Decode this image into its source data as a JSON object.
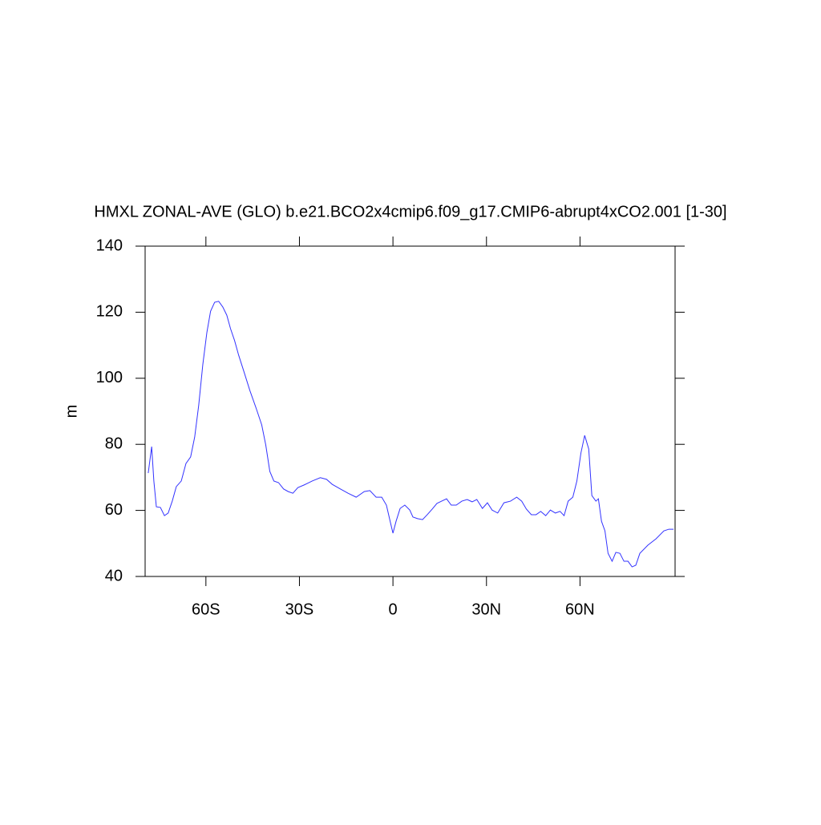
{
  "chart_data": {
    "type": "line",
    "title": "HMXL ZONAL-AVE (GLO) b.e21.BCO2x4cmip6.f09_g17.CMIP6-abrupt4xCO2.001 [1-30]",
    "y_label": "m",
    "x": [
      -78.5,
      -77.4,
      -76.7,
      -75.9,
      -74.6,
      -73.3,
      -72.1,
      -70.8,
      -69.5,
      -67.9,
      -66.4,
      -64.9,
      -63.6,
      -62.3,
      -61.0,
      -59.7,
      -58.5,
      -57.2,
      -55.9,
      -54.6,
      -53.3,
      -52.1,
      -50.8,
      -49.5,
      -47.7,
      -45.9,
      -43.8,
      -42.1,
      -40.8,
      -39.5,
      -38.2,
      -36.7,
      -35.1,
      -33.6,
      -32.1,
      -30.5,
      -28.5,
      -25.9,
      -23.3,
      -21.3,
      -19.5,
      -16.9,
      -14.4,
      -11.8,
      -9.2,
      -7.4,
      -5.4,
      -3.6,
      -2.1,
      -0.8,
      0,
      1.0,
      2.3,
      3.8,
      5.4,
      6.4,
      7.9,
      9.5,
      11.0,
      12.6,
      14.1,
      15.6,
      17.2,
      18.7,
      20.3,
      22.1,
      23.8,
      25.4,
      26.9,
      28.7,
      30.3,
      31.8,
      33.6,
      35.6,
      37.7,
      39.7,
      41.3,
      42.8,
      44.4,
      45.9,
      47.4,
      49.0,
      50.5,
      52.1,
      53.6,
      54.9,
      56.2,
      57.7,
      59.0,
      60.3,
      61.5,
      62.8,
      63.8,
      65.1,
      65.9,
      66.9,
      68.0,
      69.0,
      70.3,
      71.5,
      72.8,
      74.1,
      75.4,
      76.7,
      77.9,
      79.2,
      81.8,
      84.4,
      86.9,
      88.5,
      90.0
    ],
    "series": [
      {
        "name": "HMXL",
        "color": "#3333ff",
        "values": [
          71.3,
          79.3,
          68.9,
          61.1,
          60.9,
          58.4,
          59.2,
          62.8,
          67.2,
          68.9,
          74.2,
          76.2,
          82.2,
          91.9,
          104.1,
          113.8,
          120.3,
          123.0,
          123.3,
          121.6,
          119.1,
          115.0,
          111.4,
          107.0,
          101.7,
          96.3,
          90.7,
          85.9,
          79.8,
          71.8,
          68.9,
          68.4,
          66.5,
          65.7,
          65.2,
          66.9,
          67.7,
          68.9,
          69.9,
          69.4,
          67.9,
          66.5,
          65.2,
          64.0,
          65.7,
          66.0,
          64.0,
          64.0,
          61.6,
          56.3,
          53.1,
          56.7,
          60.6,
          61.6,
          60.1,
          58.0,
          57.5,
          57.2,
          58.7,
          60.4,
          62.1,
          62.8,
          63.5,
          61.6,
          61.6,
          62.8,
          63.3,
          62.6,
          63.3,
          60.6,
          62.3,
          60.1,
          59.2,
          62.3,
          62.8,
          64.0,
          62.8,
          60.4,
          58.7,
          58.7,
          59.7,
          58.4,
          60.1,
          59.2,
          59.7,
          58.4,
          62.8,
          64.0,
          68.9,
          77.4,
          82.7,
          78.6,
          64.5,
          62.8,
          63.5,
          56.7,
          53.8,
          47.0,
          44.6,
          47.3,
          47.0,
          44.6,
          44.6,
          42.9,
          43.4,
          47.0,
          49.5,
          51.4,
          53.8,
          54.3,
          54.3
        ]
      }
    ],
    "xlim": [
      -79.5,
      90.5
    ],
    "xticks": [
      {
        "value": -60,
        "label": "60S"
      },
      {
        "value": -30,
        "label": "30S"
      },
      0,
      {
        "value": 30,
        "label": "30N"
      },
      {
        "value": 60,
        "label": "60N"
      }
    ],
    "ylim": [
      40,
      140
    ],
    "yticks": [
      40,
      60,
      80,
      100,
      120,
      140
    ]
  }
}
